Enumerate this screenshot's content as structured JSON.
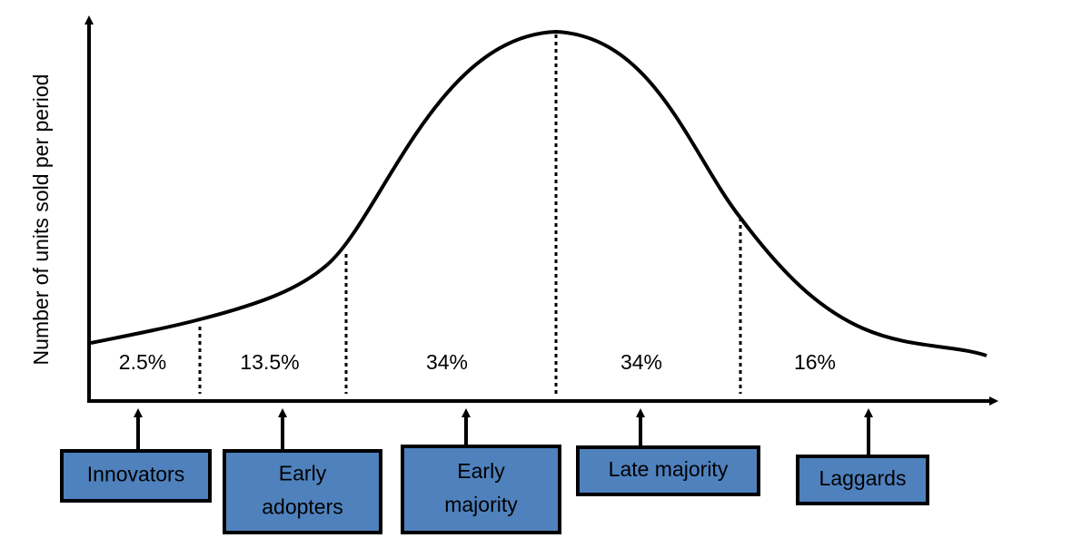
{
  "y_axis_label": "Number of units sold per period",
  "segments": [
    {
      "share": "2.5%"
    },
    {
      "share": "13.5%"
    },
    {
      "share": "34%"
    },
    {
      "share": "34%"
    },
    {
      "share": "16%"
    }
  ],
  "groups": [
    {
      "lines": [
        "Innovators"
      ]
    },
    {
      "lines": [
        "Early",
        "adopters"
      ]
    },
    {
      "lines": [
        "Early",
        "majority"
      ]
    },
    {
      "lines": [
        "Late majority"
      ]
    },
    {
      "lines": [
        "Laggards"
      ]
    }
  ]
}
